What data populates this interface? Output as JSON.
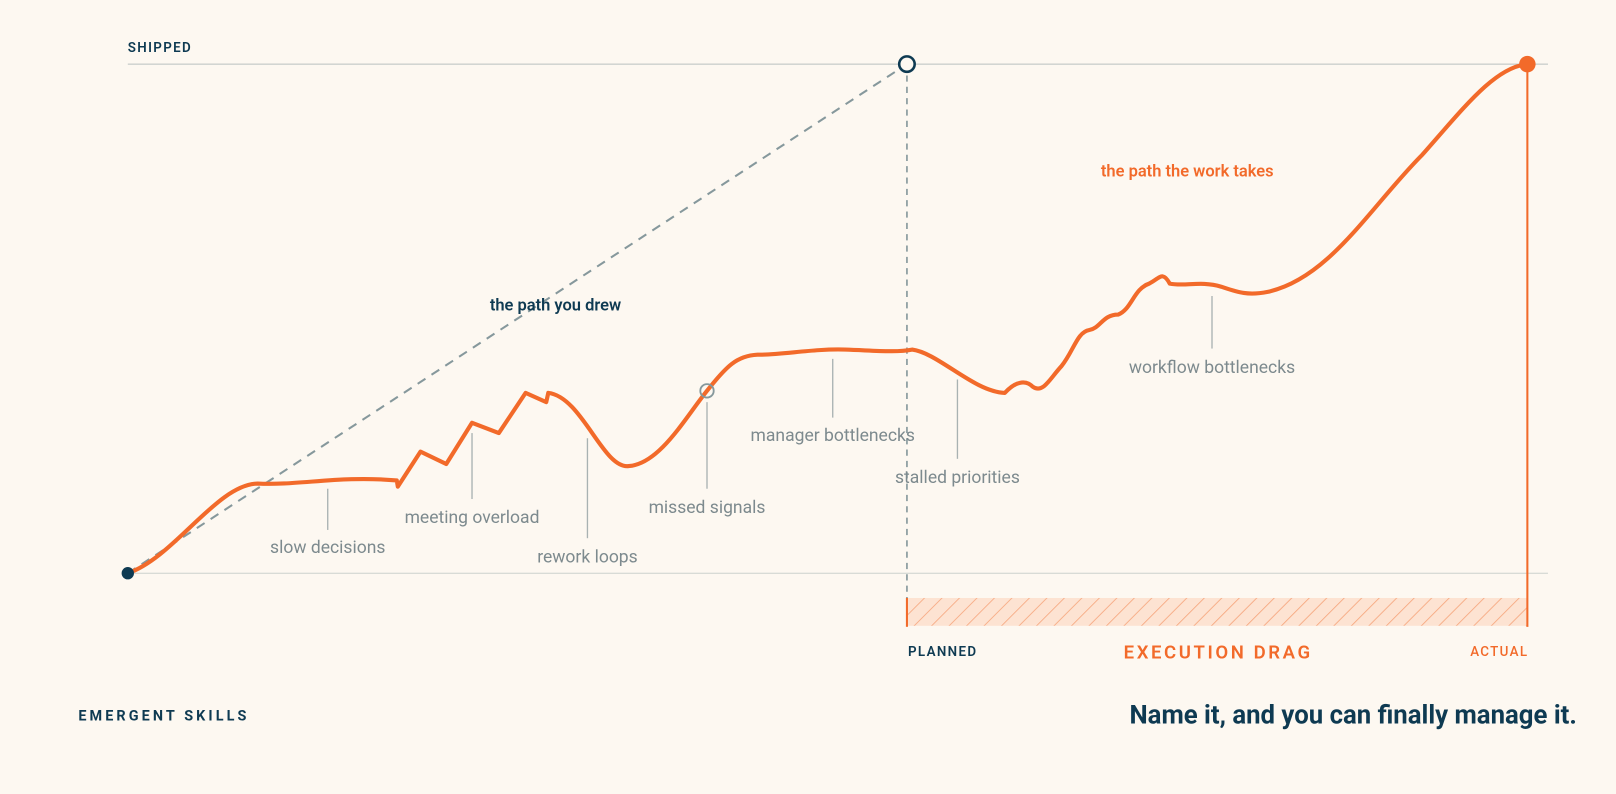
{
  "top_label": "SHIPPED",
  "planned_path_label": "the path you drew",
  "actual_path_label": "the path the work takes",
  "annotations": [
    "slow decisions",
    "meeting overload",
    "rework loops",
    "missed signals",
    "manager bottlenecks",
    "stalled priorities",
    "workflow bottlenecks"
  ],
  "gap": {
    "start_label": "PLANNED",
    "title": "EXECUTION DRAG",
    "end_label": "ACTUAL"
  },
  "footer": {
    "brand": "EMERGENT SKILLS",
    "tagline": "Name it, and you can finally manage it."
  }
}
